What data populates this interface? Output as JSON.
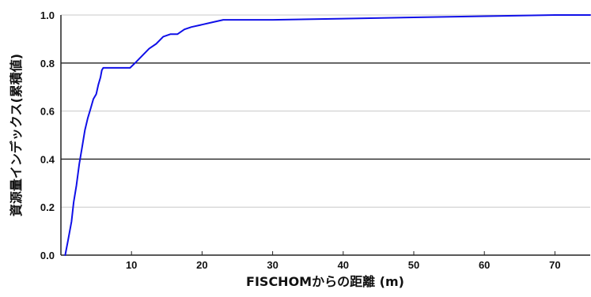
{
  "chart_data": {
    "type": "line",
    "title": "",
    "xlabel": "FISCHOMからの距離 (m)",
    "ylabel": "資源量インデックス(累積値)",
    "xlim": [
      0,
      75
    ],
    "ylim": [
      0.0,
      1.0
    ],
    "x_ticks": [
      "10",
      "20",
      "30",
      "40",
      "50",
      "60",
      "70"
    ],
    "y_ticks": [
      "0.0",
      "0.2",
      "0.4",
      "0.6",
      "0.8",
      "1.0"
    ],
    "grid": "horizontal",
    "legend": "none",
    "series": [
      {
        "color": "#1010e8",
        "x": [
          0.6,
          1.0,
          1.5,
          1.8,
          2.2,
          2.6,
          3.0,
          3.4,
          3.8,
          4.2,
          4.6,
          5.0,
          5.3,
          5.6,
          5.8,
          6.0,
          9.0,
          9.8,
          10.5,
          11.5,
          12.5,
          13.5,
          14.5,
          15.5,
          16.5,
          17.5,
          18.5,
          20.0,
          21.5,
          23.0,
          25.0,
          30.0,
          40.0,
          50.0,
          60.0,
          70.0,
          75.0
        ],
        "y": [
          0.0,
          0.06,
          0.14,
          0.22,
          0.29,
          0.38,
          0.45,
          0.52,
          0.57,
          0.61,
          0.65,
          0.67,
          0.71,
          0.74,
          0.77,
          0.78,
          0.78,
          0.78,
          0.8,
          0.83,
          0.86,
          0.88,
          0.91,
          0.92,
          0.92,
          0.94,
          0.95,
          0.96,
          0.97,
          0.98,
          0.98,
          0.98,
          0.985,
          0.99,
          0.995,
          1.0,
          1.0
        ]
      }
    ]
  }
}
